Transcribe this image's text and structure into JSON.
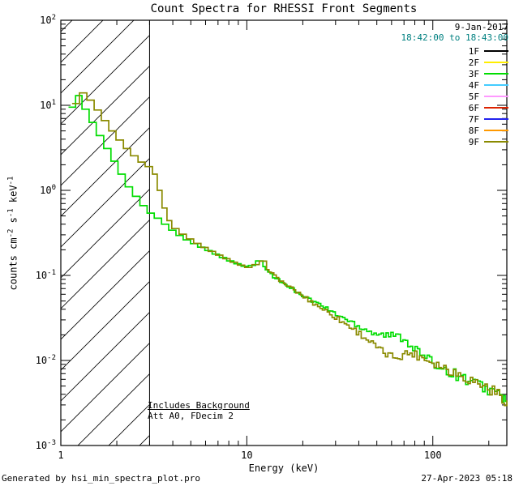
{
  "footer": {
    "generated_by": "Generated by hsi_min_spectra_plot.pro",
    "timestamp": "27-Apr-2023 05:18"
  },
  "chart_data": {
    "type": "line",
    "title": "Count Spectra for RHESSI Front Segments",
    "xlabel": "Energy (keV)",
    "ylabel": "counts cm^-2 s^-1 keV^-1",
    "xscale": "log",
    "yscale": "log",
    "xlim": [
      1,
      250
    ],
    "ylim": [
      0.001,
      100
    ],
    "grid": false,
    "legend_position": "top-right-inside",
    "date_label": "9-Jan-2017",
    "time_range_label": "18:42:00 to 18:43:00",
    "time_color": "#008080",
    "annotations": [
      "Includes Background",
      "Att A0, FDecim 2"
    ],
    "excluded_band_keV": [
      1,
      3
    ],
    "detectors": [
      {
        "label": "1F",
        "color": "#000000"
      },
      {
        "label": "2F",
        "color": "#ffee00"
      },
      {
        "label": "3F",
        "color": "#00dd00"
      },
      {
        "label": "4F",
        "color": "#44ccff"
      },
      {
        "label": "5F",
        "color": "#ff99ff"
      },
      {
        "label": "6F",
        "color": "#dd2200"
      },
      {
        "label": "7F",
        "color": "#2222ee"
      },
      {
        "label": "8F",
        "color": "#ff9900"
      },
      {
        "label": "9F",
        "color": "#8a8a00"
      }
    ],
    "jitter": {
      "start_keV": 12,
      "subdivisions": 3,
      "base": 0.03,
      "grow": 0.11
    },
    "series": [
      {
        "name": "3F",
        "color": "#00dd00",
        "points": [
          [
            1.1,
            9.5
          ],
          [
            1.2,
            13.0
          ],
          [
            1.3,
            9.0
          ],
          [
            1.42,
            6.3
          ],
          [
            1.55,
            4.4
          ],
          [
            1.7,
            3.1
          ],
          [
            1.86,
            2.2
          ],
          [
            2.03,
            1.55
          ],
          [
            2.22,
            1.1
          ],
          [
            2.43,
            0.85
          ],
          [
            2.66,
            0.66
          ],
          [
            2.91,
            0.54
          ],
          [
            3.18,
            0.47
          ],
          [
            3.48,
            0.4
          ],
          [
            3.8,
            0.34
          ],
          [
            4.16,
            0.295
          ],
          [
            4.55,
            0.262
          ],
          [
            4.98,
            0.236
          ],
          [
            5.44,
            0.215
          ],
          [
            5.95,
            0.196
          ],
          [
            6.51,
            0.178
          ],
          [
            7.12,
            0.162
          ],
          [
            7.79,
            0.148
          ],
          [
            8.52,
            0.137
          ],
          [
            9.32,
            0.128
          ],
          [
            10.2,
            0.131
          ],
          [
            11.15,
            0.148
          ],
          [
            12.2,
            0.128
          ],
          [
            13.34,
            0.102
          ],
          [
            14.59,
            0.088
          ],
          [
            15.96,
            0.078
          ],
          [
            17.46,
            0.069
          ],
          [
            19.1,
            0.061
          ],
          [
            20.89,
            0.054
          ],
          [
            22.85,
            0.049
          ],
          [
            25.0,
            0.044
          ],
          [
            27.34,
            0.039
          ],
          [
            29.91,
            0.035
          ],
          [
            32.71,
            0.0315
          ],
          [
            35.78,
            0.0285
          ],
          [
            39.14,
            0.026
          ],
          [
            42.81,
            0.0235
          ],
          [
            46.83,
            0.0215
          ],
          [
            51.22,
            0.0205
          ],
          [
            56.03,
            0.0198
          ],
          [
            61.28,
            0.0196
          ],
          [
            67.03,
            0.0188
          ],
          [
            73.32,
            0.0162
          ],
          [
            80.2,
            0.0135
          ],
          [
            87.72,
            0.0113
          ],
          [
            95.95,
            0.0098
          ],
          [
            104.9,
            0.0088
          ],
          [
            114.8,
            0.0079
          ],
          [
            125.5,
            0.0072
          ],
          [
            137.3,
            0.0066
          ],
          [
            150.2,
            0.006
          ],
          [
            164.3,
            0.0055
          ],
          [
            179.7,
            0.005
          ],
          [
            196.6,
            0.0046
          ],
          [
            215.0,
            0.0042
          ],
          [
            235.2,
            0.0037
          ],
          [
            250.0,
            0.0033
          ]
        ]
      },
      {
        "name": "9F",
        "color": "#8a8a00",
        "points": [
          [
            1.15,
            10.5
          ],
          [
            1.26,
            14.0
          ],
          [
            1.38,
            11.5
          ],
          [
            1.51,
            8.8
          ],
          [
            1.65,
            6.6
          ],
          [
            1.81,
            5.0
          ],
          [
            1.98,
            3.9
          ],
          [
            2.17,
            3.1
          ],
          [
            2.37,
            2.55
          ],
          [
            2.6,
            2.15
          ],
          [
            2.84,
            1.9
          ],
          [
            3.11,
            1.55
          ],
          [
            3.3,
            1.0
          ],
          [
            3.5,
            0.62
          ],
          [
            3.72,
            0.44
          ],
          [
            3.95,
            0.355
          ],
          [
            4.32,
            0.305
          ],
          [
            4.73,
            0.268
          ],
          [
            5.18,
            0.238
          ],
          [
            5.67,
            0.213
          ],
          [
            6.2,
            0.192
          ],
          [
            6.79,
            0.173
          ],
          [
            7.43,
            0.157
          ],
          [
            8.13,
            0.143
          ],
          [
            8.9,
            0.132
          ],
          [
            9.74,
            0.124
          ],
          [
            10.66,
            0.134
          ],
          [
            11.67,
            0.147
          ],
          [
            12.77,
            0.121
          ],
          [
            13.97,
            0.098
          ],
          [
            15.29,
            0.084
          ],
          [
            16.73,
            0.073
          ],
          [
            18.31,
            0.064
          ],
          [
            20.04,
            0.056
          ],
          [
            21.93,
            0.049
          ],
          [
            24.0,
            0.0435
          ],
          [
            26.26,
            0.0385
          ],
          [
            28.74,
            0.034
          ],
          [
            31.45,
            0.0295
          ],
          [
            34.42,
            0.026
          ],
          [
            37.66,
            0.0228
          ],
          [
            41.21,
            0.0198
          ],
          [
            45.1,
            0.0168
          ],
          [
            49.35,
            0.0142
          ],
          [
            54.0,
            0.0122
          ],
          [
            59.1,
            0.0112
          ],
          [
            64.67,
            0.0112
          ],
          [
            70.77,
            0.0122
          ],
          [
            77.44,
            0.0121
          ],
          [
            84.74,
            0.0112
          ],
          [
            92.73,
            0.0102
          ],
          [
            101.5,
            0.0094
          ],
          [
            111.0,
            0.0085
          ],
          [
            121.5,
            0.0078
          ],
          [
            133.0,
            0.0071
          ],
          [
            145.5,
            0.0065
          ],
          [
            159.2,
            0.0059
          ],
          [
            174.2,
            0.0054
          ],
          [
            190.7,
            0.0049
          ],
          [
            208.6,
            0.0044
          ],
          [
            228.3,
            0.0039
          ],
          [
            250.0,
            0.0034
          ]
        ]
      }
    ]
  }
}
